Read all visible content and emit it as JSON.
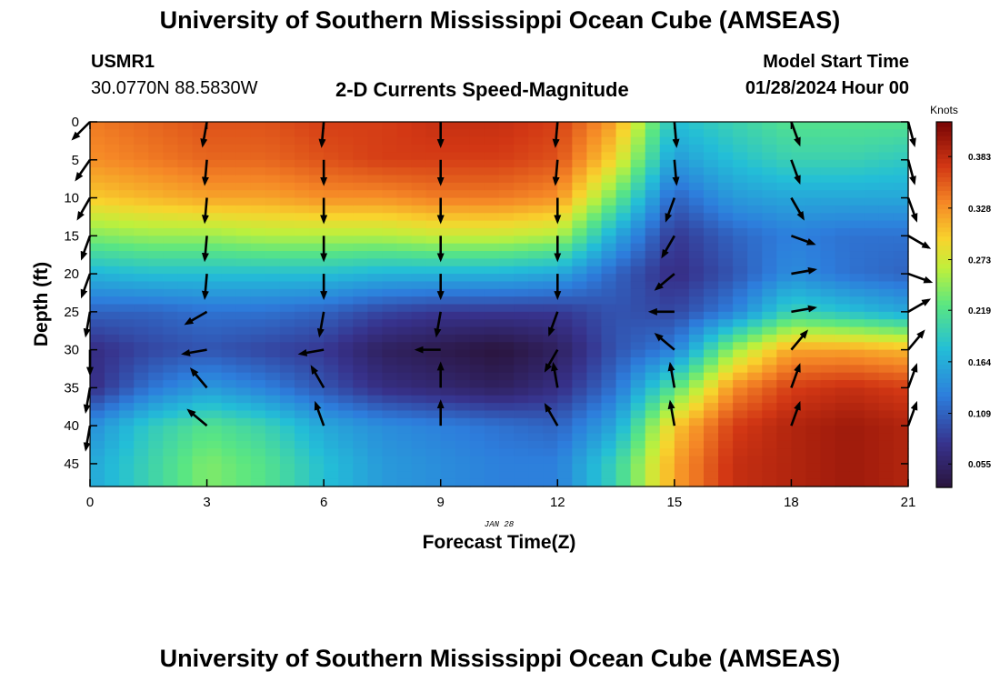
{
  "header": {
    "title": "University of Southern Mississippi Ocean Cube (AMSEAS)",
    "station_id": "USMR1",
    "station_coords": "30.0770N  88.5830W",
    "plot_title": "2-D Currents Speed-Magnitude",
    "model_start_label": "Model Start Time",
    "model_start_value": "01/28/2024 Hour 00"
  },
  "footer": {
    "title": "University of Southern Mississippi Ocean Cube (AMSEAS)"
  },
  "chart_data": {
    "type": "heatmap",
    "title": "2-D Currents Speed-Magnitude",
    "xlabel": "Forecast Time(Z)",
    "ylabel": "Depth (ft)",
    "date_label": "JAN 28",
    "x_ticks": [
      "0",
      "3",
      "6",
      "9",
      "12",
      "15",
      "18",
      "21"
    ],
    "x_tick_values": [
      0,
      3,
      6,
      9,
      12,
      15,
      18,
      21
    ],
    "y_ticks": [
      "0",
      "5",
      "10",
      "15",
      "20",
      "25",
      "30",
      "35",
      "40",
      "45"
    ],
    "y_tick_values": [
      0,
      5,
      10,
      15,
      20,
      25,
      30,
      35,
      40,
      45
    ],
    "xlim": [
      0,
      21
    ],
    "ylim": [
      0,
      48
    ],
    "colorbar": {
      "label": "Knots",
      "ticks": [
        "0.383",
        "0.328",
        "0.273",
        "0.219",
        "0.164",
        "0.109",
        "0.055"
      ],
      "tick_values": [
        0.383,
        0.328,
        0.273,
        0.219,
        0.164,
        0.109,
        0.055
      ],
      "range": [
        0.03,
        0.42
      ]
    },
    "vector_times": [
      0,
      3,
      6,
      9,
      12,
      15,
      18,
      21
    ],
    "vector_depths": [
      0,
      5,
      10,
      15,
      20,
      25,
      30,
      35,
      40
    ],
    "vectors_deg": [
      [
        135,
        125,
        120,
        110,
        110,
        100,
        90,
        100,
        100
      ],
      [
        100,
        95,
        95,
        95,
        95,
        150,
        170,
        230,
        220
      ],
      [
        95,
        90,
        90,
        90,
        90,
        100,
        170,
        240,
        250
      ],
      [
        90,
        90,
        90,
        90,
        90,
        100,
        180,
        270,
        270
      ],
      [
        95,
        95,
        90,
        90,
        90,
        110,
        120,
        260,
        240
      ],
      [
        85,
        85,
        110,
        120,
        140,
        180,
        220,
        260,
        260
      ],
      [
        70,
        70,
        60,
        20,
        350,
        350,
        310,
        290,
        290
      ],
      [
        75,
        75,
        70,
        30,
        20,
        330,
        310,
        290,
        290
      ]
    ],
    "speed_grid_times": [
      0,
      1.5,
      3,
      4.5,
      6,
      7.5,
      9,
      10.5,
      12,
      13.5,
      15,
      16.5,
      18,
      19.5,
      21
    ],
    "speed_grid_depths": [
      0,
      5,
      10,
      15,
      20,
      25,
      30,
      35,
      40,
      45,
      48
    ],
    "speed_grid": [
      [
        0.34,
        0.33,
        0.3,
        0.24,
        0.17,
        0.11,
        0.07,
        0.07,
        0.14,
        0.16,
        0.16
      ],
      [
        0.35,
        0.34,
        0.31,
        0.25,
        0.18,
        0.11,
        0.09,
        0.12,
        0.19,
        0.2,
        0.2
      ],
      [
        0.36,
        0.35,
        0.32,
        0.25,
        0.18,
        0.12,
        0.1,
        0.15,
        0.22,
        0.24,
        0.24
      ],
      [
        0.36,
        0.35,
        0.32,
        0.26,
        0.18,
        0.12,
        0.09,
        0.13,
        0.2,
        0.22,
        0.22
      ],
      [
        0.37,
        0.36,
        0.33,
        0.26,
        0.18,
        0.11,
        0.08,
        0.1,
        0.16,
        0.18,
        0.18
      ],
      [
        0.37,
        0.37,
        0.33,
        0.26,
        0.17,
        0.09,
        0.05,
        0.07,
        0.14,
        0.15,
        0.15
      ],
      [
        0.38,
        0.37,
        0.34,
        0.27,
        0.17,
        0.08,
        0.04,
        0.06,
        0.13,
        0.14,
        0.14
      ],
      [
        0.38,
        0.37,
        0.34,
        0.27,
        0.17,
        0.08,
        0.03,
        0.05,
        0.12,
        0.13,
        0.13
      ],
      [
        0.37,
        0.36,
        0.33,
        0.26,
        0.16,
        0.08,
        0.05,
        0.07,
        0.11,
        0.13,
        0.13
      ],
      [
        0.32,
        0.29,
        0.23,
        0.16,
        0.11,
        0.1,
        0.1,
        0.12,
        0.16,
        0.2,
        0.2
      ],
      [
        0.18,
        0.15,
        0.11,
        0.08,
        0.07,
        0.09,
        0.13,
        0.22,
        0.3,
        0.32,
        0.32
      ],
      [
        0.2,
        0.18,
        0.15,
        0.11,
        0.1,
        0.13,
        0.25,
        0.33,
        0.37,
        0.38,
        0.38
      ],
      [
        0.22,
        0.2,
        0.16,
        0.13,
        0.14,
        0.2,
        0.32,
        0.37,
        0.39,
        0.39,
        0.39
      ],
      [
        0.22,
        0.2,
        0.16,
        0.12,
        0.12,
        0.18,
        0.32,
        0.38,
        0.4,
        0.4,
        0.4
      ],
      [
        0.22,
        0.19,
        0.16,
        0.12,
        0.11,
        0.16,
        0.31,
        0.37,
        0.39,
        0.39,
        0.39
      ]
    ]
  }
}
